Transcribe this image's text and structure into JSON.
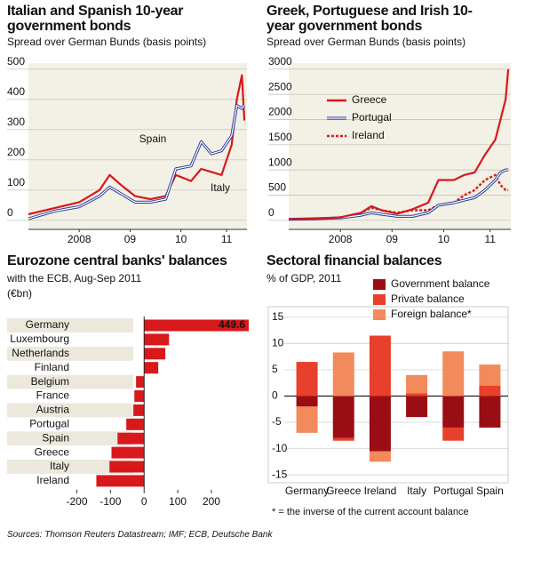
{
  "chart_data": [
    {
      "type": "line",
      "title": "Italian and Spanish 10-year government bonds",
      "subtitle": "Spread over German Bunds (basis points)",
      "x": [
        2007.5,
        2008.0,
        2008.5,
        2008.9,
        2009.1,
        2009.3,
        2009.6,
        2009.9,
        2010.2,
        2010.4,
        2010.7,
        2010.9,
        2011.1,
        2011.3,
        2011.5,
        2011.6,
        2011.7,
        2011.75
      ],
      "series": [
        {
          "name": "Spain",
          "color": "#2a3f9a",
          "style": "outline",
          "values": [
            5,
            30,
            45,
            80,
            110,
            90,
            60,
            60,
            70,
            170,
            180,
            260,
            220,
            230,
            280,
            380,
            370,
            380
          ]
        },
        {
          "name": "Italy",
          "color": "#d7191c",
          "style": "solid",
          "values": [
            20,
            40,
            60,
            100,
            150,
            120,
            80,
            70,
            80,
            150,
            130,
            170,
            160,
            150,
            250,
            400,
            480,
            330
          ]
        }
      ],
      "annotations": [
        "Spain",
        "Italy"
      ],
      "xlim": [
        2007.5,
        2011.8
      ],
      "xticks": [
        {
          "value": 2008.5,
          "label": "2008"
        },
        {
          "value": 2009.5,
          "label": "09"
        },
        {
          "value": 2010.5,
          "label": "10"
        },
        {
          "value": 2011.4,
          "label": "11"
        }
      ],
      "ylim": [
        -30,
        520
      ],
      "yticks": [
        0,
        100,
        200,
        300,
        400,
        500
      ],
      "grid": true
    },
    {
      "type": "line",
      "title": "Greek, Portuguese and Irish 10-year government bonds",
      "subtitle": "Spread over German Bunds (basis points)",
      "x": [
        2007.5,
        2008.0,
        2008.5,
        2008.9,
        2009.1,
        2009.3,
        2009.6,
        2009.9,
        2010.2,
        2010.4,
        2010.7,
        2010.9,
        2011.1,
        2011.3,
        2011.5,
        2011.6,
        2011.7,
        2011.75
      ],
      "series": [
        {
          "name": "Greece",
          "color": "#d7191c",
          "style": "solid",
          "values": [
            20,
            30,
            60,
            150,
            280,
            200,
            130,
            220,
            350,
            800,
            800,
            900,
            950,
            1300,
            1600,
            2000,
            2400,
            3000
          ]
        },
        {
          "name": "Portugal",
          "color": "#2a3f9a",
          "style": "outline",
          "values": [
            20,
            30,
            50,
            100,
            150,
            120,
            80,
            80,
            150,
            300,
            350,
            400,
            450,
            600,
            800,
            950,
            1000,
            1000
          ]
        },
        {
          "name": "Ireland",
          "color": "#d7191c",
          "style": "dashed",
          "values": [
            20,
            30,
            50,
            150,
            250,
            200,
            150,
            200,
            200,
            300,
            350,
            500,
            600,
            800,
            900,
            700,
            600,
            600
          ]
        }
      ],
      "legend": "upper left",
      "xlim": [
        2007.5,
        2011.8
      ],
      "xticks": [
        {
          "value": 2008.5,
          "label": "2008"
        },
        {
          "value": 2009.5,
          "label": "09"
        },
        {
          "value": 2010.5,
          "label": "10"
        },
        {
          "value": 2011.4,
          "label": "11"
        }
      ],
      "ylim": [
        -180,
        3120
      ],
      "yticks": [
        0,
        500,
        1000,
        1500,
        2000,
        2500,
        3000
      ],
      "grid": true
    },
    {
      "type": "hbar",
      "title": "Eurozone central banks' balances",
      "subtitle": "with the ECB, Aug-Sep 2011",
      "unit": "(€bn)",
      "categories": [
        "Germany",
        "Luxembourg",
        "Netherlands",
        "Finland",
        "Belgium",
        "France",
        "Austria",
        "Portugal",
        "Spain",
        "Greece",
        "Italy",
        "Ireland"
      ],
      "values": [
        449.6,
        74,
        63,
        42,
        -24,
        -29,
        -32,
        -53,
        -79,
        -97,
        -103,
        -142
      ],
      "value_labels": [
        "449.6",
        null,
        null,
        null,
        null,
        null,
        null,
        null,
        null,
        null,
        null,
        null
      ],
      "color": "#d7191c",
      "xlim": [
        -200,
        311
      ],
      "xticks": [
        -200,
        -100,
        0,
        100,
        200
      ]
    },
    {
      "type": "stacked_bar",
      "title": "Sectoral financial balances",
      "subtitle": "% of GDP, 2011",
      "categories": [
        "Germany",
        "Greece",
        "Ireland",
        "Italy",
        "Portugal",
        "Spain"
      ],
      "series": [
        {
          "name": "Government balance",
          "color": "#9b0d14",
          "values": [
            -2,
            -8,
            -10.5,
            -4,
            -6,
            -6
          ]
        },
        {
          "name": "Private balance",
          "color": "#e8402a",
          "values": [
            6.5,
            -0.5,
            11.5,
            0.5,
            -2.5,
            2
          ]
        },
        {
          "name": "Foreign balance*",
          "color": "#f28a5c",
          "values": [
            -5,
            8.3,
            -2,
            3.5,
            8.5,
            4
          ]
        }
      ],
      "footnote": "* = the inverse of the current account balance",
      "ylim": [
        -16.5,
        17
      ],
      "yticks": [
        -15,
        -10,
        -5,
        0,
        5,
        10,
        15
      ],
      "grid": true
    }
  ],
  "source": "Sources: Thomson Reuters Datastream; IMF; ECB, Deutsche Bank"
}
